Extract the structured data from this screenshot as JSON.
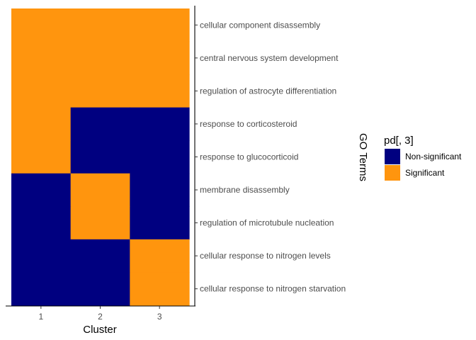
{
  "chart_data": {
    "type": "heatmap",
    "xlabel": "Cluster",
    "ylabel": "GO Terms",
    "x_categories": [
      "1",
      "2",
      "3"
    ],
    "y_categories": [
      "cellular component disassembly",
      "central nervous system development",
      "regulation of astrocyte differentiation",
      "response to corticosteroid",
      "response to glucocorticoid",
      "membrane disassembly",
      "regulation of microtubule nucleation",
      "cellular response to nitrogen levels",
      "cellular response to nitrogen starvation"
    ],
    "values": [
      [
        "Significant",
        "Significant",
        "Significant"
      ],
      [
        "Significant",
        "Significant",
        "Significant"
      ],
      [
        "Significant",
        "Significant",
        "Significant"
      ],
      [
        "Significant",
        "Non-significant",
        "Non-significant"
      ],
      [
        "Significant",
        "Non-significant",
        "Non-significant"
      ],
      [
        "Non-significant",
        "Significant",
        "Non-significant"
      ],
      [
        "Non-significant",
        "Significant",
        "Non-significant"
      ],
      [
        "Non-significant",
        "Non-significant",
        "Significant"
      ],
      [
        "Non-significant",
        "Non-significant",
        "Significant"
      ]
    ],
    "legend": {
      "title": "pd[, 3]",
      "position": "right",
      "entries": [
        {
          "label": "Non-significant",
          "color": "#000080"
        },
        {
          "label": "Significant",
          "color": "#FF950E"
        }
      ]
    },
    "grid": false
  }
}
